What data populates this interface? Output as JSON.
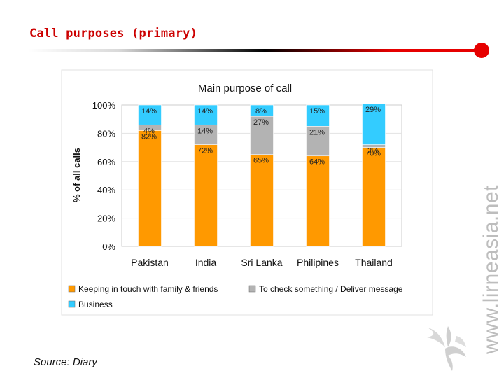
{
  "slide": {
    "title": "Call purposes (primary)",
    "source": "Source: Diary",
    "watermark": "www.lirneasia.net",
    "accent_color": "#e60000"
  },
  "chart_data": {
    "type": "bar",
    "stacked": true,
    "title": "Main purpose of call",
    "xlabel": "",
    "ylabel": "% of all calls",
    "ylim": [
      0,
      100
    ],
    "y_ticks": [
      "0%",
      "20%",
      "40%",
      "60%",
      "80%",
      "100%"
    ],
    "grid": true,
    "legend_position": "bottom",
    "categories": [
      "Pakistan",
      "India",
      "Sri Lanka",
      "Philipines",
      "Thailand"
    ],
    "series": [
      {
        "name": "Keeping in touch with family & friends",
        "color": "#ff9900",
        "values": [
          82,
          72,
          65,
          64,
          70
        ],
        "labels": [
          "82%",
          "72%",
          "65%",
          "64%",
          "70%"
        ]
      },
      {
        "name": "To check something / Deliver message",
        "color": "#b3b3b3",
        "values": [
          4,
          14,
          27,
          21,
          2
        ],
        "labels": [
          "4%",
          "14%",
          "27%",
          "21%",
          "2%"
        ]
      },
      {
        "name": "Business",
        "color": "#33ccff",
        "values": [
          14,
          14,
          8,
          15,
          29
        ],
        "labels": [
          "14%",
          "14%",
          "8%",
          "15%",
          "29%"
        ]
      }
    ]
  }
}
